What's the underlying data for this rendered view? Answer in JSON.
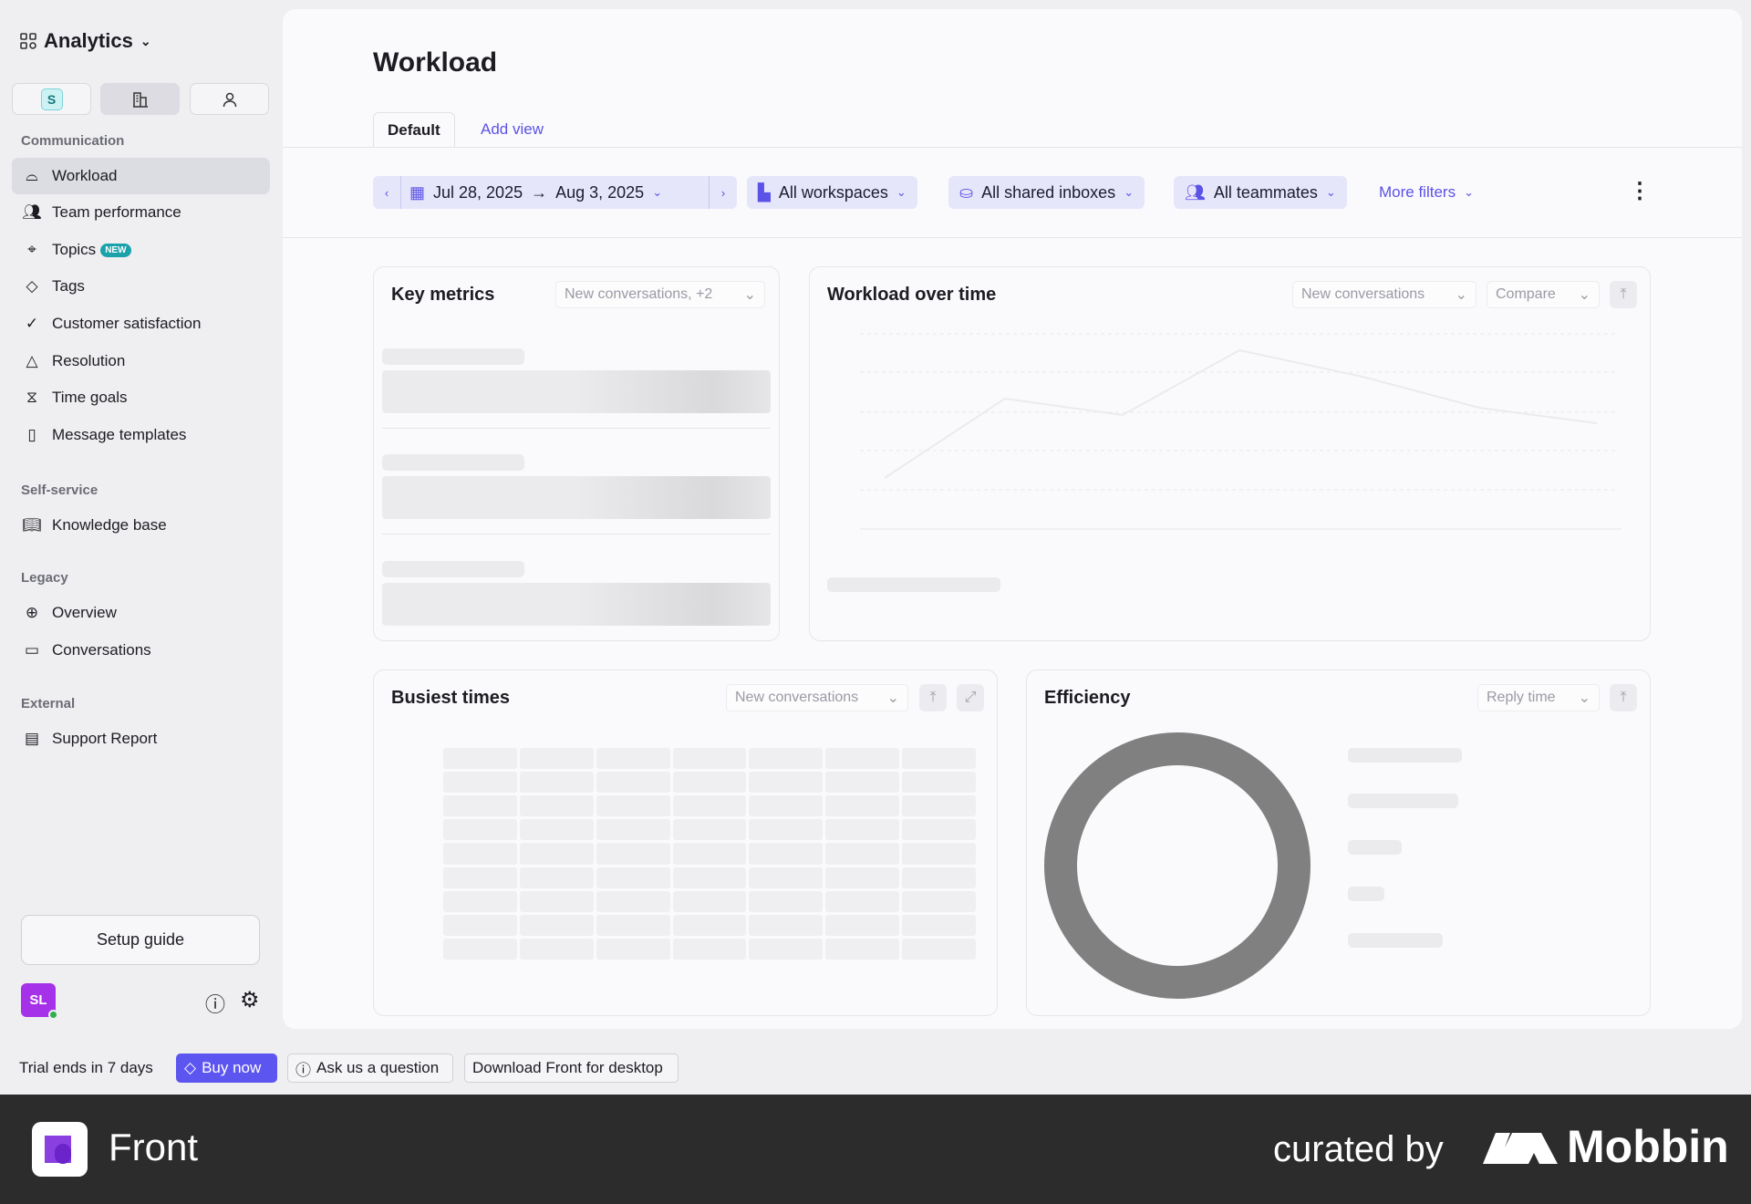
{
  "sidebar": {
    "title": "Analytics",
    "workspace_badge": "S",
    "sections": [
      {
        "label": "Communication",
        "items": [
          {
            "label": "Workload",
            "icon": "inbox-icon"
          },
          {
            "label": "Team performance",
            "icon": "users-icon"
          },
          {
            "label": "Topics",
            "icon": "target-icon",
            "badge": "NEW"
          },
          {
            "label": "Tags",
            "icon": "tag-icon"
          },
          {
            "label": "Customer satisfaction",
            "icon": "badge-check-icon"
          },
          {
            "label": "Resolution",
            "icon": "nodes-icon"
          },
          {
            "label": "Time goals",
            "icon": "hourglass-icon"
          },
          {
            "label": "Message templates",
            "icon": "template-icon"
          }
        ]
      },
      {
        "label": "Self-service",
        "items": [
          {
            "label": "Knowledge base",
            "icon": "book-icon"
          }
        ]
      },
      {
        "label": "Legacy",
        "items": [
          {
            "label": "Overview",
            "icon": "globe-icon"
          },
          {
            "label": "Conversations",
            "icon": "chat-icon"
          }
        ]
      },
      {
        "label": "External",
        "items": [
          {
            "label": "Support Report",
            "icon": "document-icon"
          }
        ]
      }
    ],
    "setup_guide": "Setup guide",
    "avatar": "SL"
  },
  "trial": {
    "text": "Trial ends in 7 days",
    "buy": "Buy now",
    "ask": "Ask us a question",
    "download": "Download Front for desktop"
  },
  "main": {
    "title": "Workload",
    "tabs": [
      "Default",
      "Add view"
    ],
    "filters": {
      "date_start": "Jul 28, 2025",
      "date_end": "Aug 3, 2025",
      "workspaces": "All workspaces",
      "inboxes": "All shared inboxes",
      "teammates": "All teammates",
      "more": "More filters"
    },
    "cards": {
      "key_metrics": {
        "title": "Key metrics",
        "select": "New conversations, +2"
      },
      "workload_over_time": {
        "title": "Workload over time",
        "select": "New conversations",
        "compare": "Compare"
      },
      "busiest_times": {
        "title": "Busiest times",
        "select": "New conversations"
      },
      "efficiency": {
        "title": "Efficiency",
        "select": "Reply time"
      }
    }
  },
  "colors": {
    "accent": "#5d55f0",
    "chip_bg": "#e6e6fb",
    "avatar": "#a531e8"
  },
  "footer": {
    "brand": "Front",
    "curated": "curated by",
    "mobbin": "Mobbin"
  }
}
